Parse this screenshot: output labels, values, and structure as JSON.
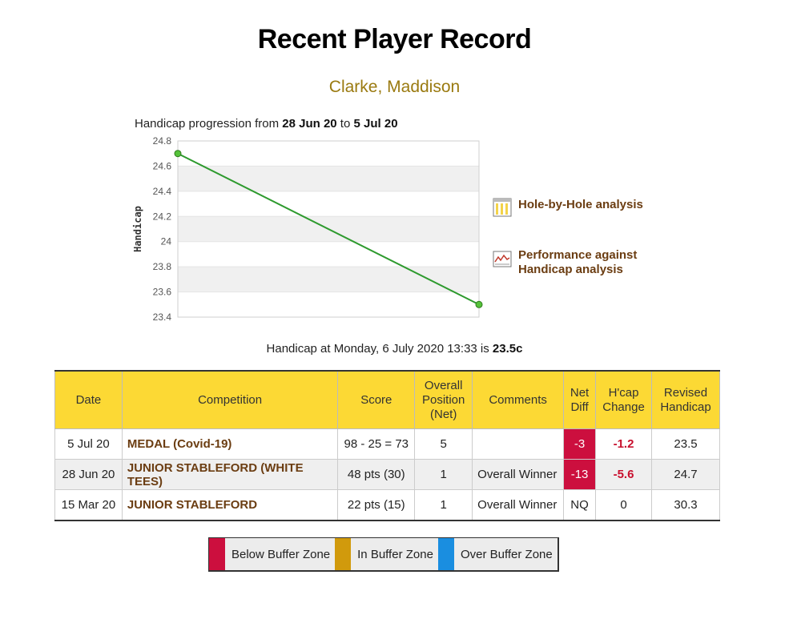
{
  "page": {
    "title": "Recent Player Record",
    "player_name": "Clarke, Maddison"
  },
  "chart_intro": {
    "prefix": "Handicap progression from ",
    "from": "28 Jun 20",
    "mid": " to ",
    "to": "5 Jul 20"
  },
  "chart_data": {
    "type": "line",
    "ylabel": "Handicap",
    "ylim": [
      23.4,
      24.8
    ],
    "yticks": [
      "24.8",
      "24.6",
      "24.4",
      "24.2",
      "24",
      "23.8",
      "23.6",
      "23.4"
    ],
    "x": [
      "28 Jun 20",
      "5 Jul 20"
    ],
    "series": [
      {
        "values": [
          24.7,
          23.5
        ]
      }
    ],
    "grid": true,
    "line_color": "#2e9a2e"
  },
  "links": {
    "hole_by_hole": "Hole-by-Hole analysis",
    "performance_1": "Performance against",
    "performance_2": "Handicap analysis"
  },
  "handicap_status": {
    "prefix": "Handicap at Monday, 6 July 2020 13:33 is ",
    "value": "23.5c"
  },
  "table": {
    "headers": {
      "date": "Date",
      "competition": "Competition",
      "score": "Score",
      "position_1": "Overall",
      "position_2": "Position",
      "position_3": "(Net)",
      "comments": "Comments",
      "netdiff_1": "Net",
      "netdiff_2": "Diff",
      "hcap_1": "H'cap",
      "hcap_2": "Change",
      "revised_1": "Revised",
      "revised_2": "Handicap"
    },
    "rows": [
      {
        "date": "5 Jul 20",
        "competition": "MEDAL (Covid-19)",
        "score": "98 - 25 = 73",
        "position": "5",
        "comments": "",
        "net_diff": "-3",
        "hcap_change": "-1.2",
        "revised": "23.5"
      },
      {
        "date": "28 Jun 20",
        "competition": "JUNIOR STABLEFORD (WHITE TEES)",
        "score": "48 pts (30)",
        "position": "1",
        "comments": "Overall Winner",
        "net_diff": "-13",
        "hcap_change": "-5.6",
        "revised": "24.7"
      },
      {
        "date": "15 Mar 20",
        "competition": "JUNIOR STABLEFORD",
        "score": "22 pts (15)",
        "position": "1",
        "comments": "Overall Winner",
        "net_diff": "NQ",
        "hcap_change": "0",
        "revised": "30.3"
      }
    ]
  },
  "legend": {
    "below": {
      "label": "Below Buffer Zone",
      "color": "#cc0f3e"
    },
    "in": {
      "label": "In Buffer Zone",
      "color": "#d19a0c"
    },
    "over": {
      "label": "Over Buffer Zone",
      "color": "#1a8ee0"
    }
  }
}
